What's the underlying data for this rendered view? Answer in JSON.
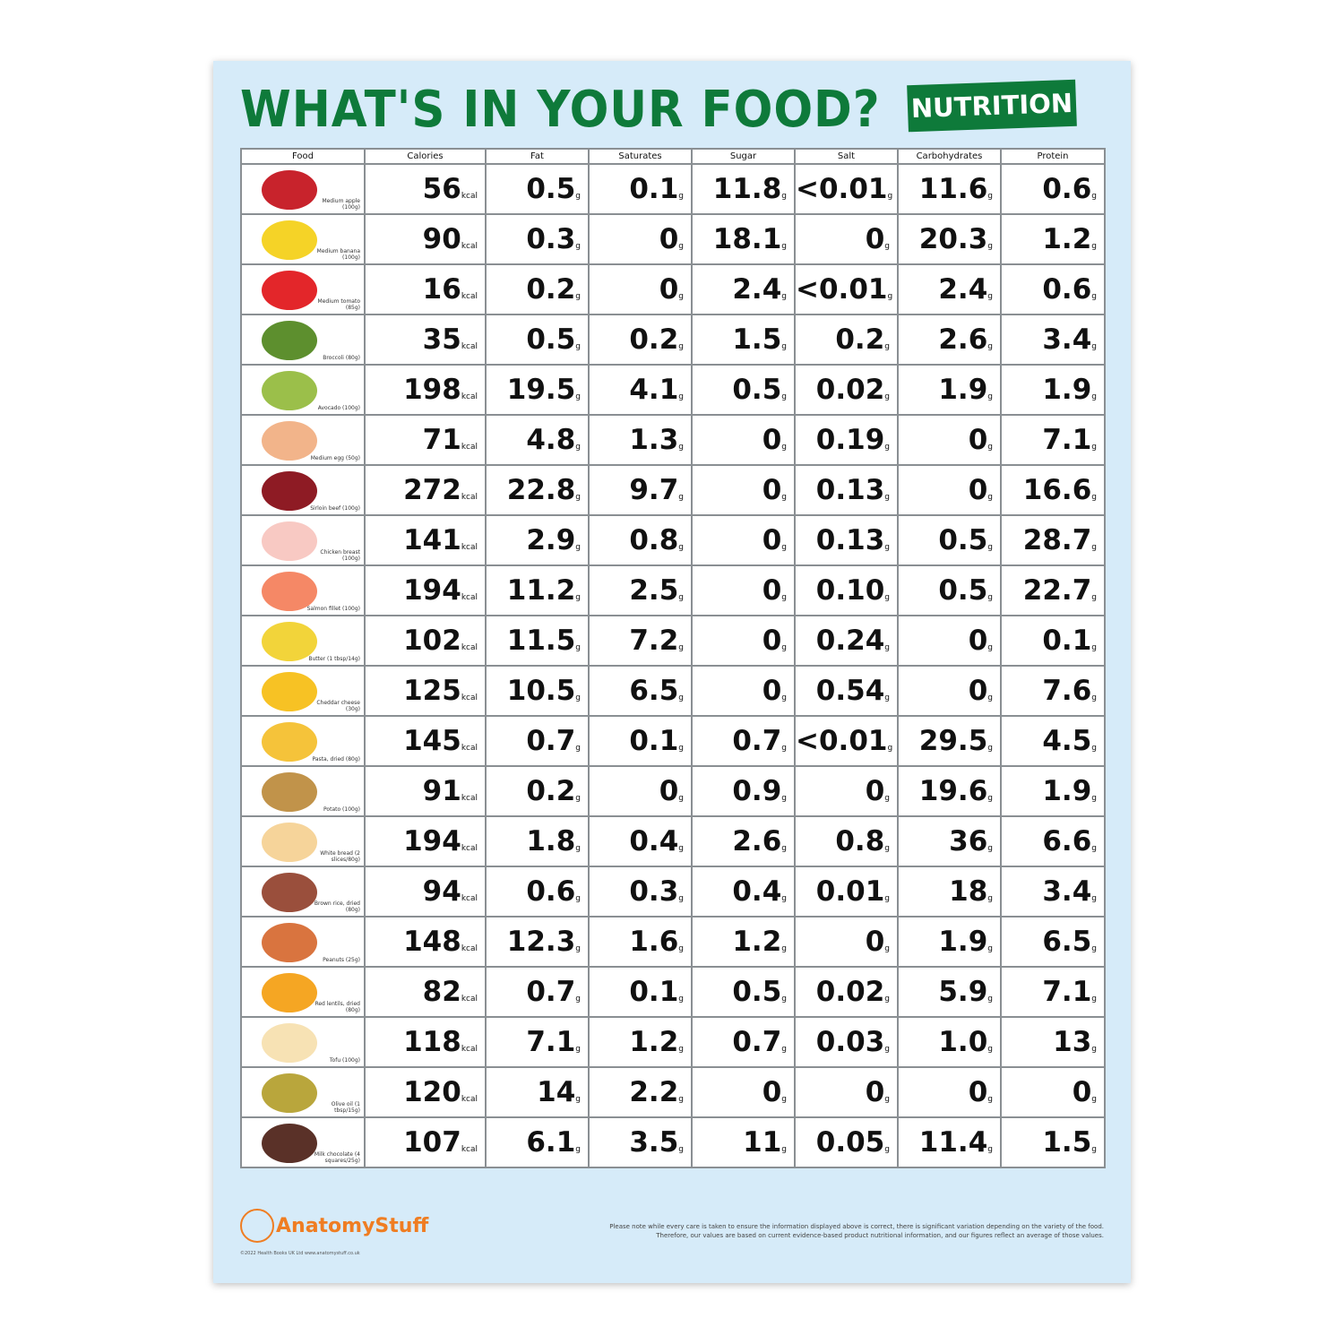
{
  "title": "WHAT'S IN YOUR FOOD?",
  "badge": "NUTRITION",
  "columns": [
    "Food",
    "Calories",
    "Fat",
    "Saturates",
    "Sugar",
    "Salt",
    "Carbohydrates",
    "Protein"
  ],
  "units": {
    "calories": "kcal",
    "grams": "g"
  },
  "rows": [
    {
      "food": "Medium apple (100g)",
      "icon": "apple-icon",
      "color": "#c8232c",
      "v": [
        "56",
        "0.5",
        "0.1",
        "11.8",
        "<0.01",
        "11.6",
        "0.6"
      ]
    },
    {
      "food": "Medium banana (100g)",
      "icon": "banana-icon",
      "color": "#f5d327",
      "v": [
        "90",
        "0.3",
        "0",
        "18.1",
        "0",
        "20.3",
        "1.2"
      ]
    },
    {
      "food": "Medium tomato (85g)",
      "icon": "tomato-icon",
      "color": "#e3262a",
      "v": [
        "16",
        "0.2",
        "0",
        "2.4",
        "<0.01",
        "2.4",
        "0.6"
      ]
    },
    {
      "food": "Broccoli (80g)",
      "icon": "broccoli-icon",
      "color": "#5d8f2e",
      "v": [
        "35",
        "0.5",
        "0.2",
        "1.5",
        "0.2",
        "2.6",
        "3.4"
      ]
    },
    {
      "food": "Avocado (100g)",
      "icon": "avocado-icon",
      "color": "#9bbf4a",
      "v": [
        "198",
        "19.5",
        "4.1",
        "0.5",
        "0.02",
        "1.9",
        "1.9"
      ]
    },
    {
      "food": "Medium egg (50g)",
      "icon": "egg-icon",
      "color": "#f2b48a",
      "v": [
        "71",
        "4.8",
        "1.3",
        "0",
        "0.19",
        "0",
        "7.1"
      ]
    },
    {
      "food": "Sirloin beef (100g)",
      "icon": "beef-icon",
      "color": "#8e1b24",
      "v": [
        "272",
        "22.8",
        "9.7",
        "0",
        "0.13",
        "0",
        "16.6"
      ]
    },
    {
      "food": "Chicken breast (100g)",
      "icon": "chicken-icon",
      "color": "#f8c9c3",
      "v": [
        "141",
        "2.9",
        "0.8",
        "0",
        "0.13",
        "0.5",
        "28.7"
      ]
    },
    {
      "food": "Salmon fillet (100g)",
      "icon": "salmon-icon",
      "color": "#f58866",
      "v": [
        "194",
        "11.2",
        "2.5",
        "0",
        "0.10",
        "0.5",
        "22.7"
      ]
    },
    {
      "food": "Butter (1 tbsp/14g)",
      "icon": "butter-spoon-icon",
      "color": "#f2d43a",
      "v": [
        "102",
        "11.5",
        "7.2",
        "0",
        "0.24",
        "0",
        "0.1"
      ]
    },
    {
      "food": "Cheddar cheese (30g)",
      "icon": "cheese-icon",
      "color": "#f7c224",
      "v": [
        "125",
        "10.5",
        "6.5",
        "0",
        "0.54",
        "0",
        "7.6"
      ]
    },
    {
      "food": "Pasta, dried (80g)",
      "icon": "pasta-icon",
      "color": "#f5c33a",
      "v": [
        "145",
        "0.7",
        "0.1",
        "0.7",
        "<0.01",
        "29.5",
        "4.5"
      ]
    },
    {
      "food": "Potato (100g)",
      "icon": "potato-icon",
      "color": "#c1934a",
      "v": [
        "91",
        "0.2",
        "0",
        "0.9",
        "0",
        "19.6",
        "1.9"
      ]
    },
    {
      "food": "White bread (2 slices/80g)",
      "icon": "bread-icon",
      "color": "#f6d49a",
      "v": [
        "194",
        "1.8",
        "0.4",
        "2.6",
        "0.8",
        "36",
        "6.6"
      ]
    },
    {
      "food": "Brown rice, dried (80g)",
      "icon": "rice-bowl-icon",
      "color": "#9a4f3c",
      "v": [
        "94",
        "0.6",
        "0.3",
        "0.4",
        "0.01",
        "18",
        "3.4"
      ]
    },
    {
      "food": "Peanuts (25g)",
      "icon": "peanut-icon",
      "color": "#d9743f",
      "v": [
        "148",
        "12.3",
        "1.6",
        "1.2",
        "0",
        "1.9",
        "6.5"
      ]
    },
    {
      "food": "Red lentils, dried (80g)",
      "icon": "lentils-icon",
      "color": "#f5a623",
      "v": [
        "82",
        "0.7",
        "0.1",
        "0.5",
        "0.02",
        "5.9",
        "7.1"
      ]
    },
    {
      "food": "Tofu (100g)",
      "icon": "tofu-icon",
      "color": "#f7e2b4",
      "v": [
        "118",
        "7.1",
        "1.2",
        "0.7",
        "0.03",
        "1.0",
        "13"
      ]
    },
    {
      "food": "Olive oil (1 tbsp/15g)",
      "icon": "olive-oil-spoon-icon",
      "color": "#b9a63c",
      "v": [
        "120",
        "14",
        "2.2",
        "0",
        "0",
        "0",
        "0"
      ]
    },
    {
      "food": "Milk chocolate (4 squares/25g)",
      "icon": "chocolate-icon",
      "color": "#5a3128",
      "v": [
        "107",
        "6.1",
        "3.5",
        "11",
        "0.05",
        "11.4",
        "1.5"
      ]
    }
  ],
  "logo": "AnatomyStuff",
  "copyright": "©2022 Health Books UK Ltd www.anatomystuff.co.uk",
  "note": "Please note while every care is taken to ensure the information displayed above is correct, there is significant variation depending on the variety of the food. Therefore, our values are based on current evidence-based product nutritional information, and our figures reflect an average of those values."
}
